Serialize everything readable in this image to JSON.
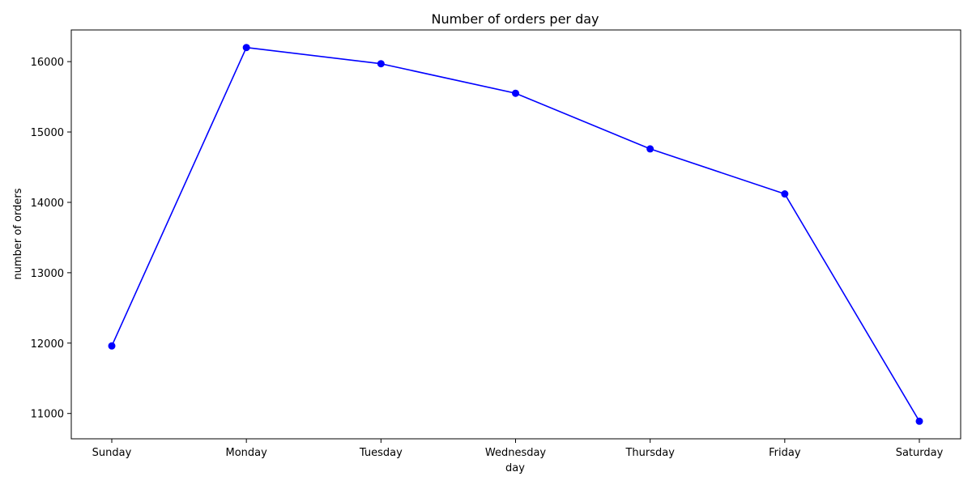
{
  "chart_data": {
    "type": "line",
    "title": "Number of orders per day",
    "xlabel": "day",
    "ylabel": "number of orders",
    "categories": [
      "Sunday",
      "Monday",
      "Tuesday",
      "Wednesday",
      "Thursday",
      "Friday",
      "Saturday"
    ],
    "series": [
      {
        "values": [
          11960,
          16200,
          15970,
          15550,
          14760,
          14120,
          10890
        ],
        "color": "#0000ff",
        "marker": "circle"
      }
    ],
    "ylim": [
      10640,
      16450
    ],
    "yticks": [
      11000,
      12000,
      13000,
      14000,
      15000,
      16000
    ],
    "grid": false,
    "legend": "none"
  }
}
